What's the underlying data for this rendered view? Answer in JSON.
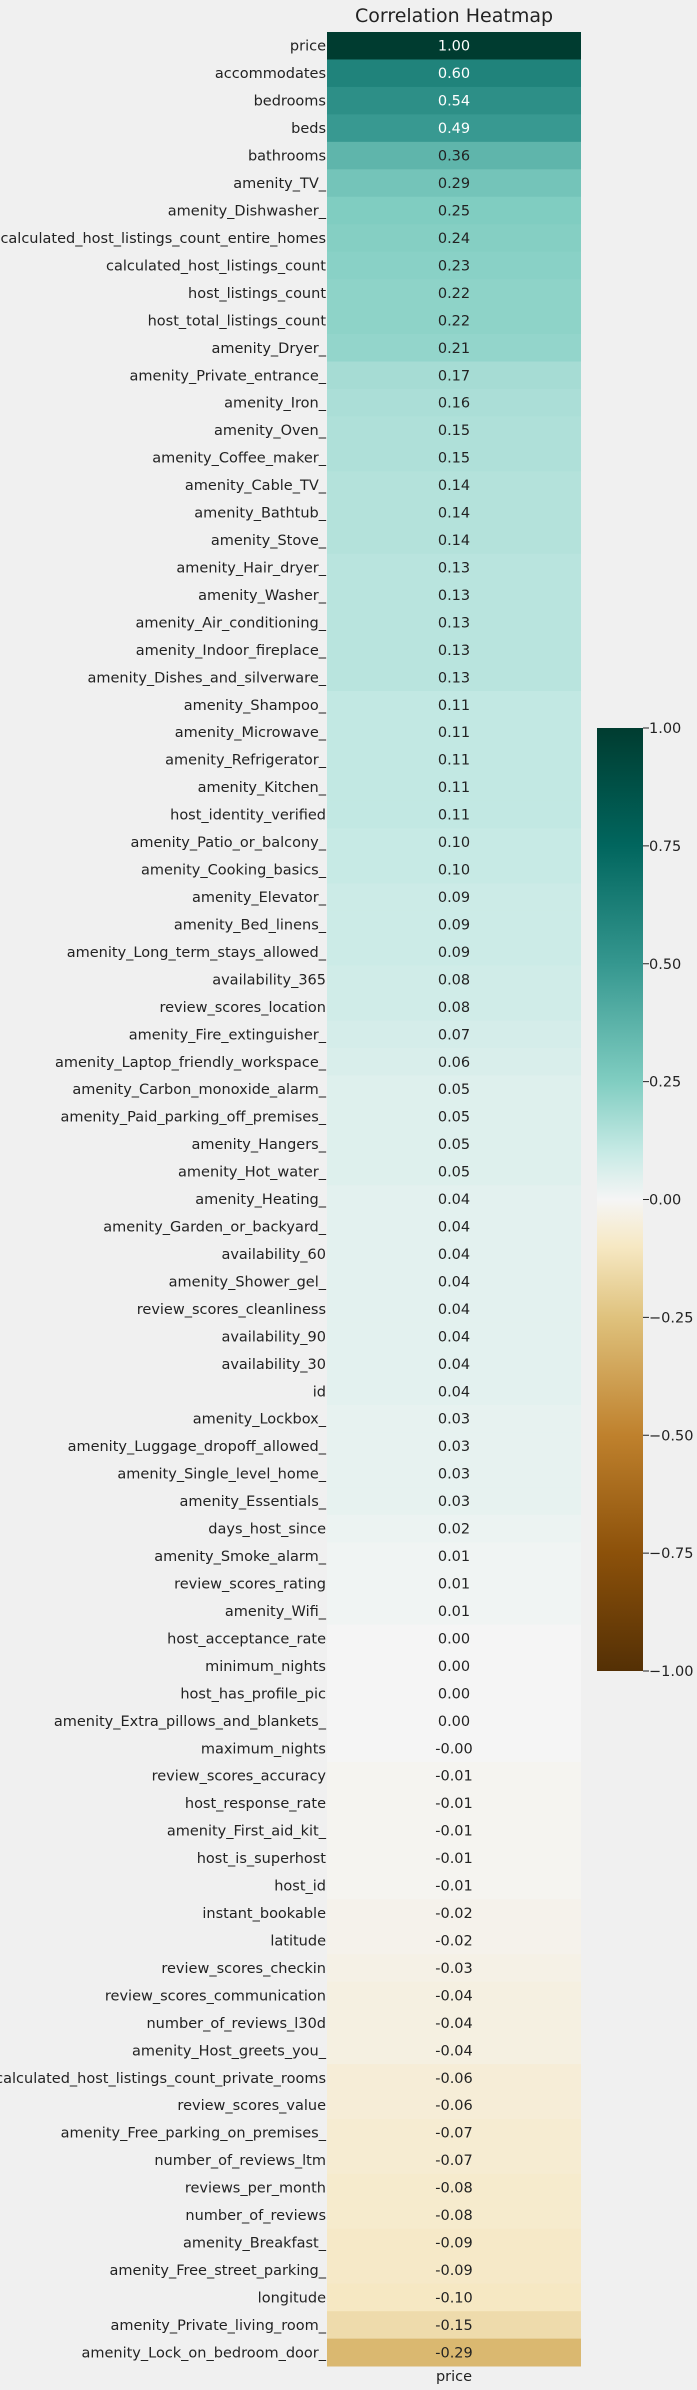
{
  "chart_data": {
    "type": "heatmap",
    "title": "Correlation Heatmap",
    "x_categories": [
      "price"
    ],
    "rows": [
      "price",
      "accommodates",
      "bedrooms",
      "beds",
      "bathrooms",
      "amenity_TV_",
      "amenity_Dishwasher_",
      "calculated_host_listings_count_entire_homes",
      "calculated_host_listings_count",
      "host_listings_count",
      "host_total_listings_count",
      "amenity_Dryer_",
      "amenity_Private_entrance_",
      "amenity_Iron_",
      "amenity_Oven_",
      "amenity_Coffee_maker_",
      "amenity_Cable_TV_",
      "amenity_Bathtub_",
      "amenity_Stove_",
      "amenity_Hair_dryer_",
      "amenity_Washer_",
      "amenity_Air_conditioning_",
      "amenity_Indoor_fireplace_",
      "amenity_Dishes_and_silverware_",
      "amenity_Shampoo_",
      "amenity_Microwave_",
      "amenity_Refrigerator_",
      "amenity_Kitchen_",
      "host_identity_verified",
      "amenity_Patio_or_balcony_",
      "amenity_Cooking_basics_",
      "amenity_Elevator_",
      "amenity_Bed_linens_",
      "amenity_Long_term_stays_allowed_",
      "availability_365",
      "review_scores_location",
      "amenity_Fire_extinguisher_",
      "amenity_Laptop_friendly_workspace_",
      "amenity_Carbon_monoxide_alarm_",
      "amenity_Paid_parking_off_premises_",
      "amenity_Hangers_",
      "amenity_Hot_water_",
      "amenity_Heating_",
      "amenity_Garden_or_backyard_",
      "availability_60",
      "amenity_Shower_gel_",
      "review_scores_cleanliness",
      "availability_90",
      "availability_30",
      "id",
      "amenity_Lockbox_",
      "amenity_Luggage_dropoff_allowed_",
      "amenity_Single_level_home_",
      "amenity_Essentials_",
      "days_host_since",
      "amenity_Smoke_alarm_",
      "review_scores_rating",
      "amenity_Wifi_",
      "host_acceptance_rate",
      "minimum_nights",
      "host_has_profile_pic",
      "amenity_Extra_pillows_and_blankets_",
      "maximum_nights",
      "review_scores_accuracy",
      "host_response_rate",
      "amenity_First_aid_kit_",
      "host_is_superhost",
      "host_id",
      "instant_bookable",
      "latitude",
      "review_scores_checkin",
      "review_scores_communication",
      "number_of_reviews_l30d",
      "amenity_Host_greets_you_",
      "calculated_host_listings_count_private_rooms",
      "review_scores_value",
      "amenity_Free_parking_on_premises_",
      "number_of_reviews_ltm",
      "reviews_per_month",
      "number_of_reviews",
      "amenity_Breakfast_",
      "amenity_Free_street_parking_",
      "longitude",
      "amenity_Private_living_room_",
      "amenity_Lock_on_bedroom_door_"
    ],
    "values": [
      1.0,
      0.6,
      0.54,
      0.49,
      0.36,
      0.29,
      0.25,
      0.24,
      0.23,
      0.22,
      0.22,
      0.21,
      0.17,
      0.16,
      0.15,
      0.15,
      0.14,
      0.14,
      0.14,
      0.13,
      0.13,
      0.13,
      0.13,
      0.13,
      0.11,
      0.11,
      0.11,
      0.11,
      0.11,
      0.1,
      0.1,
      0.09,
      0.09,
      0.09,
      0.08,
      0.08,
      0.07,
      0.06,
      0.05,
      0.05,
      0.05,
      0.05,
      0.04,
      0.04,
      0.04,
      0.04,
      0.04,
      0.04,
      0.04,
      0.04,
      0.03,
      0.03,
      0.03,
      0.03,
      0.02,
      0.01,
      0.01,
      0.01,
      0.0,
      0.0,
      0.0,
      0.0,
      -0.0,
      -0.01,
      -0.01,
      -0.01,
      -0.01,
      -0.01,
      -0.02,
      -0.02,
      -0.03,
      -0.04,
      -0.04,
      -0.04,
      -0.06,
      -0.06,
      -0.07,
      -0.07,
      -0.08,
      -0.08,
      -0.09,
      -0.09,
      -0.1,
      -0.15,
      -0.29
    ],
    "annotations": [
      "1.00",
      "0.60",
      "0.54",
      "0.49",
      "0.36",
      "0.29",
      "0.25",
      "0.24",
      "0.23",
      "0.22",
      "0.22",
      "0.21",
      "0.17",
      "0.16",
      "0.15",
      "0.15",
      "0.14",
      "0.14",
      "0.14",
      "0.13",
      "0.13",
      "0.13",
      "0.13",
      "0.13",
      "0.11",
      "0.11",
      "0.11",
      "0.11",
      "0.11",
      "0.10",
      "0.10",
      "0.09",
      "0.09",
      "0.09",
      "0.08",
      "0.08",
      "0.07",
      "0.06",
      "0.05",
      "0.05",
      "0.05",
      "0.05",
      "0.04",
      "0.04",
      "0.04",
      "0.04",
      "0.04",
      "0.04",
      "0.04",
      "0.04",
      "0.03",
      "0.03",
      "0.03",
      "0.03",
      "0.02",
      "0.01",
      "0.01",
      "0.01",
      "0.00",
      "0.00",
      "0.00",
      "0.00",
      "-0.00",
      "-0.01",
      "-0.01",
      "-0.01",
      "-0.01",
      "-0.01",
      "-0.02",
      "-0.02",
      "-0.03",
      "-0.04",
      "-0.04",
      "-0.04",
      "-0.06",
      "-0.06",
      "-0.07",
      "-0.07",
      "-0.08",
      "-0.08",
      "-0.09",
      "-0.09",
      "-0.10",
      "-0.15",
      "-0.29"
    ],
    "colormap": "BrBG",
    "vmin": -1.0,
    "vmax": 1.0,
    "colorbar_ticks": [
      "1.00",
      "0.75",
      "0.50",
      "0.25",
      "0.00",
      "−0.25",
      "−0.50",
      "−0.75",
      "−1.00"
    ],
    "colorbar_tick_values": [
      1.0,
      0.75,
      0.5,
      0.25,
      0.0,
      -0.25,
      -0.5,
      -0.75,
      -1.0
    ],
    "colors": {
      "background": "#f0f0f0",
      "text": "#222222"
    }
  }
}
